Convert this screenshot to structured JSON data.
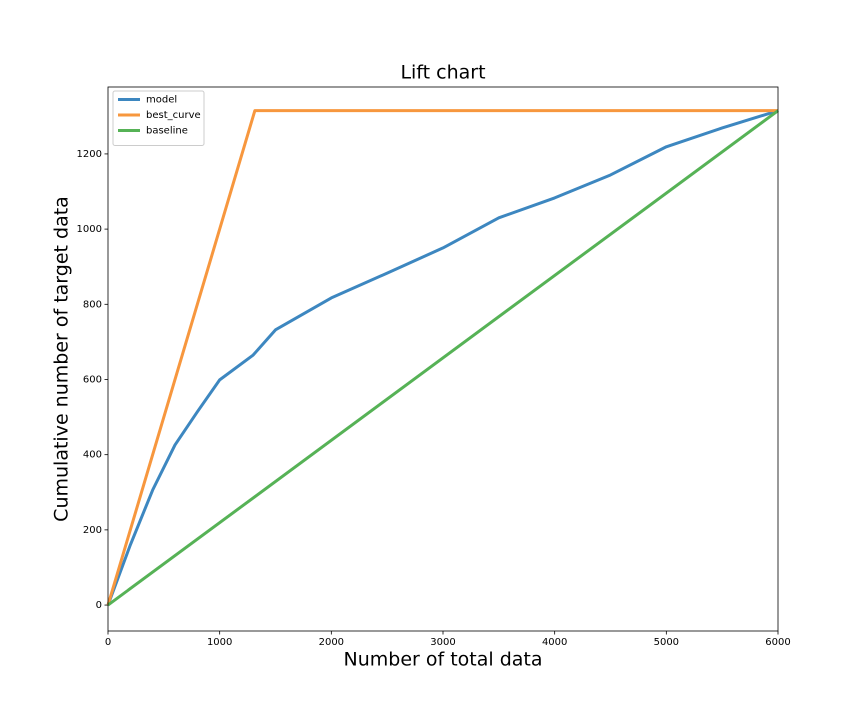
{
  "chart_data": {
    "type": "line",
    "title": "Lift chart",
    "x_label": "Number of total data",
    "y_label": "Cumulative number of target data",
    "xlim": [
      0,
      6000
    ],
    "ylim": [
      -69,
      1378
    ],
    "xticks": [
      0,
      1000,
      2000,
      3000,
      4000,
      5000,
      6000
    ],
    "yticks": [
      0,
      200,
      400,
      600,
      800,
      1000,
      1200
    ],
    "grid": false,
    "legend": "upper left",
    "series": [
      {
        "name": "model",
        "color": "#3d87c0",
        "x": [
          0,
          200,
          400,
          600,
          800,
          1000,
          1300,
          1500,
          2000,
          2500,
          3000,
          3500,
          4000,
          4500,
          5000,
          5500,
          6000
        ],
        "values": [
          0,
          160,
          306,
          426,
          514,
          599,
          665,
          732,
          817,
          883,
          950,
          1030,
          1083,
          1144,
          1219,
          1269,
          1315
        ]
      },
      {
        "name": "best_curve",
        "color": "#f7973e",
        "x": [
          0,
          1315,
          6000
        ],
        "values": [
          0,
          1315,
          1315
        ]
      },
      {
        "name": "baseline",
        "color": "#56b256",
        "x": [
          0,
          6000
        ],
        "values": [
          0,
          1315
        ]
      }
    ]
  }
}
